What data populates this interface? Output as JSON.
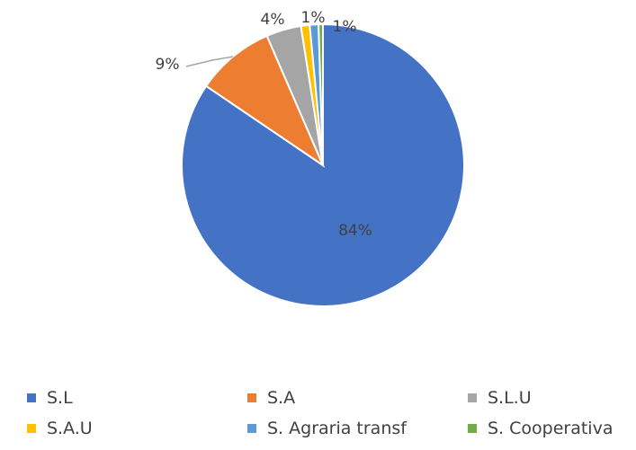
{
  "chart_data": {
    "type": "pie",
    "title": "",
    "slices": [
      {
        "label": "S.L",
        "value": 84.5,
        "display": "84%",
        "color": "#4472C4"
      },
      {
        "label": "S.A",
        "value": 9.0,
        "display": "9%",
        "color": "#ED7D31"
      },
      {
        "label": "S.L.U",
        "value": 4.0,
        "display": "4%",
        "color": "#A5A5A5"
      },
      {
        "label": "S.A.U",
        "value": 1.0,
        "display": "1%",
        "color": "#FFC000"
      },
      {
        "label": "S. Agraria transf",
        "value": 1.0,
        "display": "1%",
        "color": "#5B9BD5"
      },
      {
        "label": "S. Cooperativa",
        "value": 0.5,
        "display": "",
        "color": "#70AD47"
      }
    ],
    "legend_position": "bottom"
  }
}
